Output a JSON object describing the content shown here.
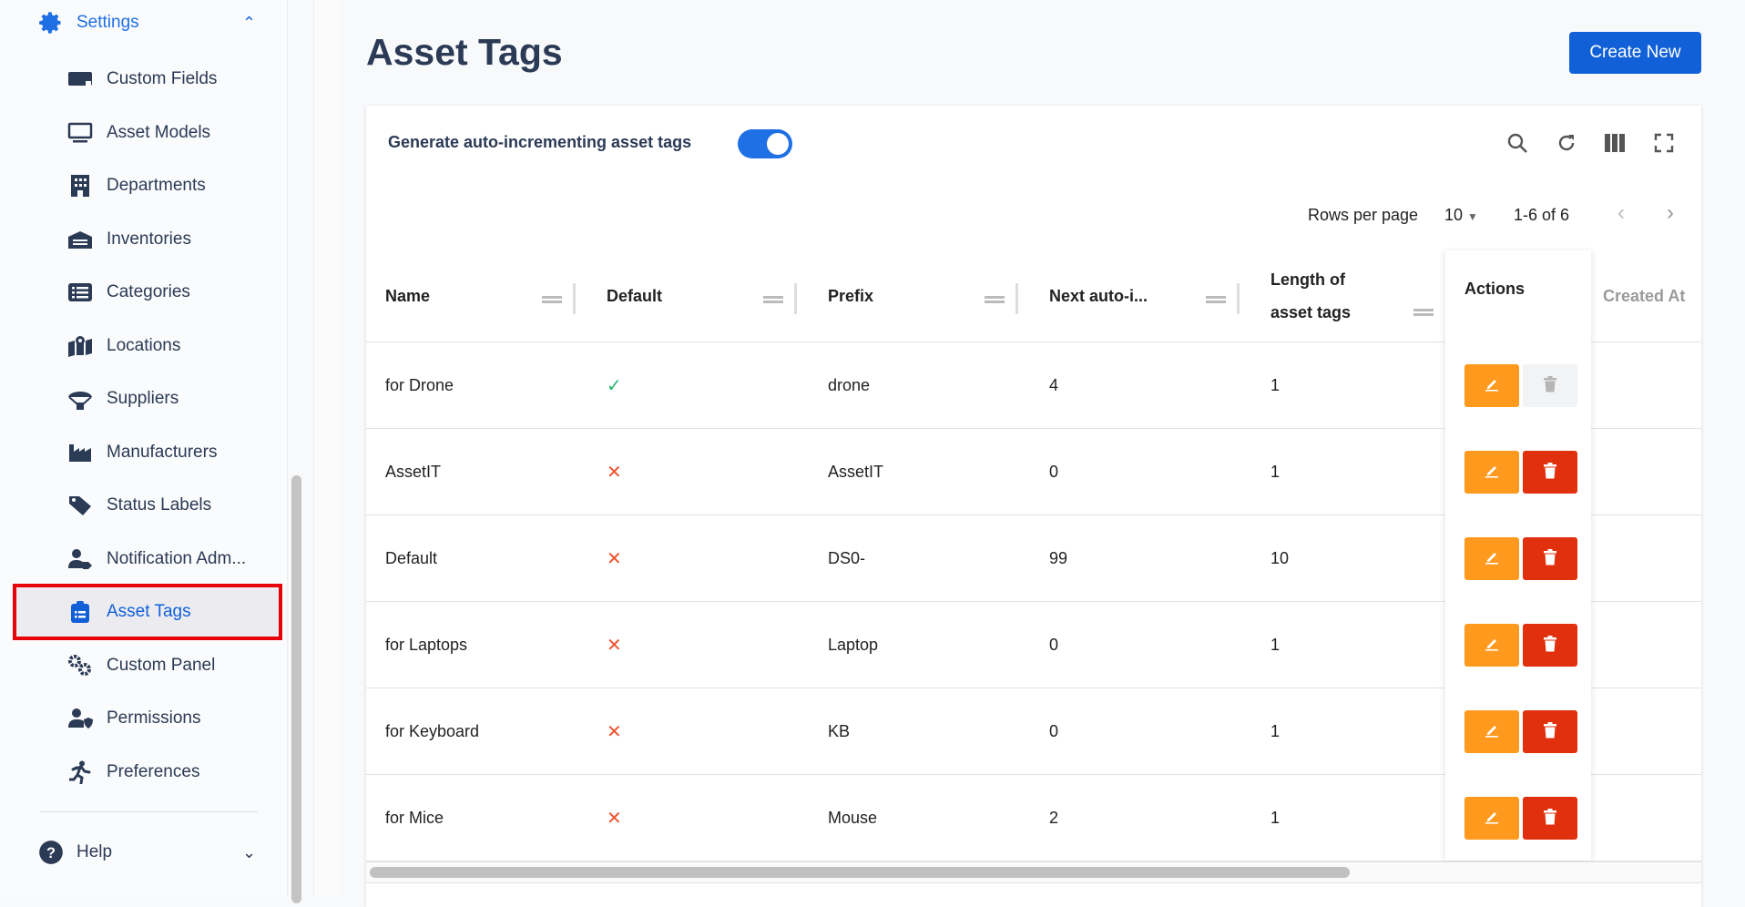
{
  "sidebar": {
    "settings_label": "Settings",
    "help_label": "Help",
    "items": [
      {
        "label": "Custom Fields",
        "icon": "custom-fields-icon"
      },
      {
        "label": "Asset Models",
        "icon": "monitor-icon"
      },
      {
        "label": "Departments",
        "icon": "building-icon"
      },
      {
        "label": "Inventories",
        "icon": "warehouse-icon"
      },
      {
        "label": "Categories",
        "icon": "list-icon"
      },
      {
        "label": "Locations",
        "icon": "map-pin-icon"
      },
      {
        "label": "Suppliers",
        "icon": "parachute-icon"
      },
      {
        "label": "Manufacturers",
        "icon": "factory-icon"
      },
      {
        "label": "Status Labels",
        "icon": "tag-icon"
      },
      {
        "label": "Notification Adm...",
        "icon": "user-tag-icon"
      },
      {
        "label": "Asset Tags",
        "icon": "clipboard-list-icon",
        "active": true
      },
      {
        "label": "Custom Panel",
        "icon": "gears-icon"
      },
      {
        "label": "Permissions",
        "icon": "user-shield-icon"
      },
      {
        "label": "Preferences",
        "icon": "running-icon"
      }
    ]
  },
  "page": {
    "title": "Asset Tags",
    "create_label": "Create New"
  },
  "toolbar": {
    "toggle_label": "Generate auto-incrementing asset tags",
    "toggle_on": true
  },
  "pagination": {
    "rows_per_page_label": "Rows per page",
    "rows_per_page": "10",
    "range": "1-6 of 6"
  },
  "table": {
    "headers": [
      "Name",
      "Default",
      "Prefix",
      "Next auto-i...",
      "Length of asset tags",
      "Actions",
      "Created At"
    ],
    "rows": [
      {
        "name": "for Drone",
        "default": true,
        "prefix": "drone",
        "next": "4",
        "length": "1",
        "deletable": false
      },
      {
        "name": "AssetIT",
        "default": false,
        "prefix": "AssetIT",
        "next": "0",
        "length": "1",
        "deletable": true
      },
      {
        "name": "Default",
        "default": false,
        "prefix": "DS0-",
        "next": "99",
        "length": "10",
        "deletable": true
      },
      {
        "name": "for Laptops",
        "default": false,
        "prefix": "Laptop",
        "next": "0",
        "length": "1",
        "deletable": true
      },
      {
        "name": "for Keyboard",
        "default": false,
        "prefix": "KB",
        "next": "0",
        "length": "1",
        "deletable": true
      },
      {
        "name": "for Mice",
        "default": false,
        "prefix": "Mouse",
        "next": "2",
        "length": "1",
        "deletable": true
      }
    ]
  },
  "colors": {
    "primary": "#1160d8",
    "edit": "#ff9a1f",
    "delete": "#e0300e",
    "check": "#2bb673",
    "cross": "#f0532e",
    "highlight": "#e8000b"
  }
}
